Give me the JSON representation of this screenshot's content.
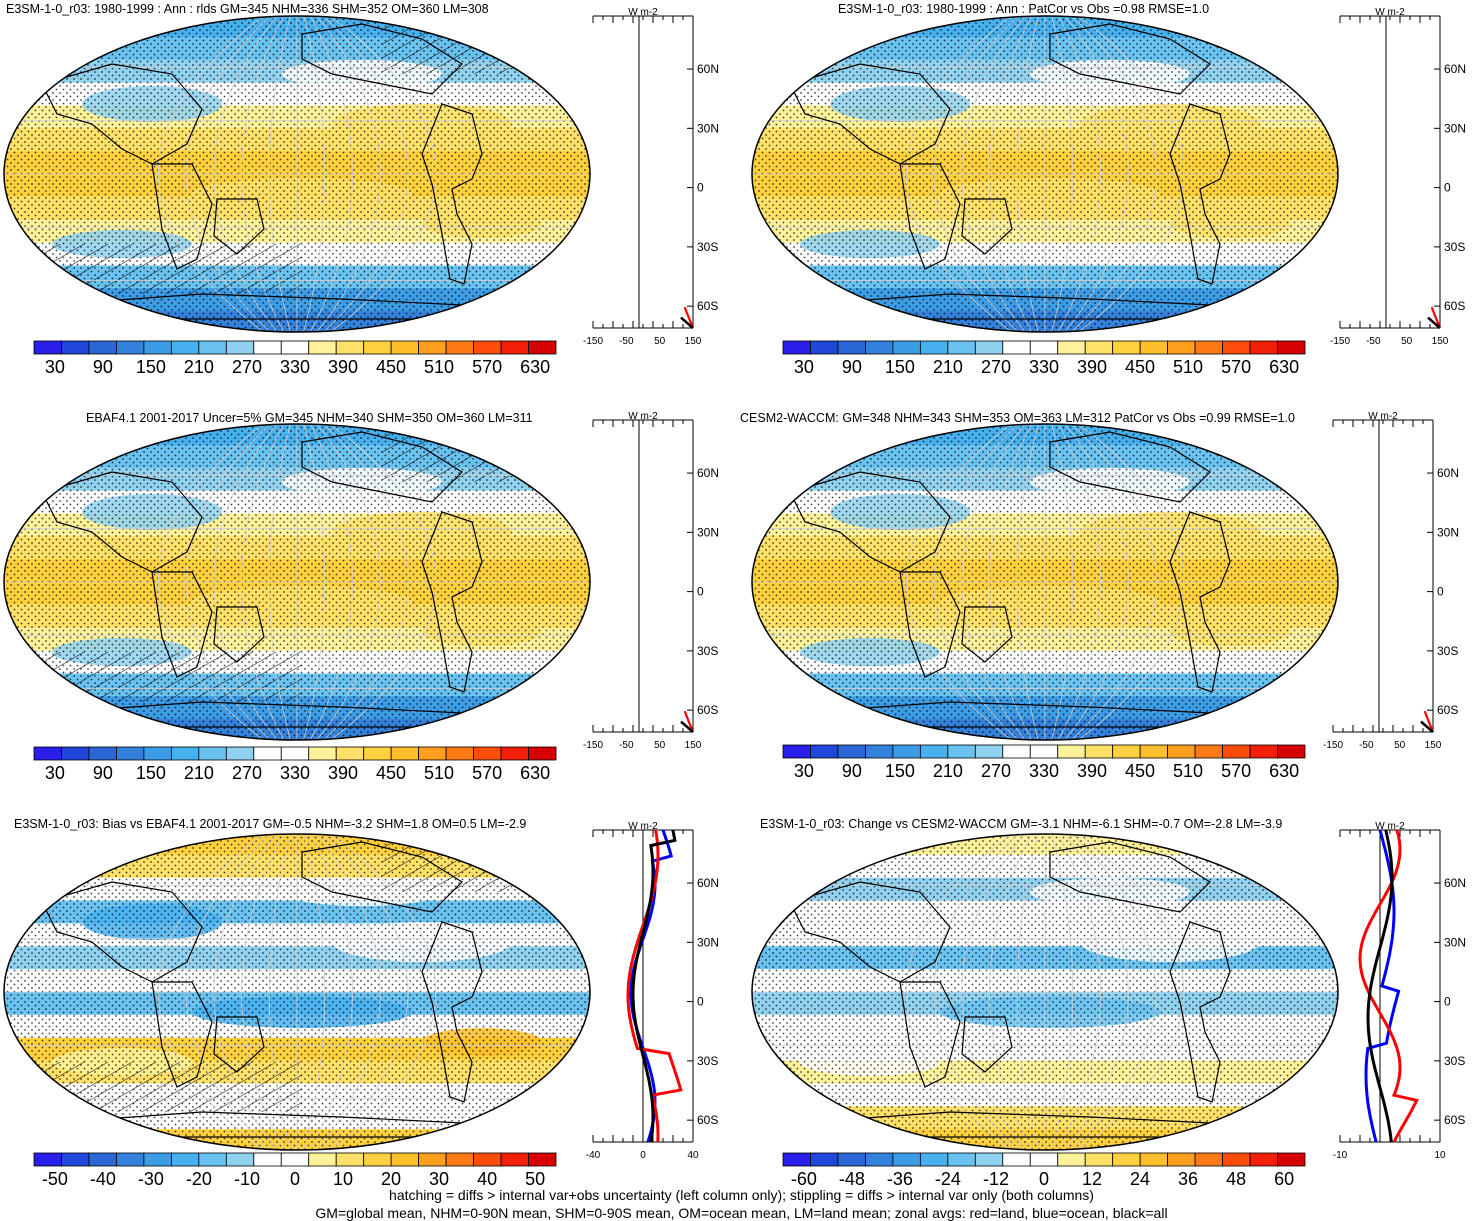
{
  "panels": [
    {
      "title": "E3SM-1-0_r03: 1980-1999 : Ann : rlds GM=345 NHM=336 SHM=352 OM=360 LM=308",
      "colorbar_labels": [
        "30",
        "90",
        "150",
        "210",
        "270",
        "330",
        "390",
        "450",
        "510",
        "570",
        "630"
      ],
      "zonal_ticks": [
        "-150",
        "-50",
        "50",
        "150"
      ],
      "zonal_unit": "W m-2",
      "lat_labels": [
        "60N",
        "30N",
        "0",
        "30S",
        "60S"
      ],
      "kind": "abs",
      "hatch": true
    },
    {
      "title": "E3SM-1-0_r03: 1980-1999 : Ann : PatCor vs Obs =0.98 RMSE=1.0",
      "colorbar_labels": [
        "30",
        "90",
        "150",
        "210",
        "270",
        "330",
        "390",
        "450",
        "510",
        "570",
        "630"
      ],
      "zonal_ticks": [
        "-150",
        "-50",
        "50",
        "150"
      ],
      "zonal_unit": "W m-2",
      "lat_labels": [
        "60N",
        "30N",
        "0",
        "30S",
        "60S"
      ],
      "kind": "abs",
      "hatch": false
    },
    {
      "title": "EBAF4.1 2001-2017 Uncer=5% GM=345 NHM=340 SHM=350 OM=360 LM=311",
      "colorbar_labels": [
        "30",
        "90",
        "150",
        "210",
        "270",
        "330",
        "390",
        "450",
        "510",
        "570",
        "630"
      ],
      "zonal_ticks": [
        "-150",
        "-50",
        "50",
        "150"
      ],
      "zonal_unit": "W m-2",
      "lat_labels": [
        "60N",
        "30N",
        "0",
        "30S",
        "60S"
      ],
      "kind": "abs",
      "hatch": true
    },
    {
      "title": "CESM2-WACCM: GM=348 NHM=343 SHM=353 OM=363 LM=312 PatCor vs Obs =0.99 RMSE=1.0",
      "colorbar_labels": [
        "30",
        "90",
        "150",
        "210",
        "270",
        "330",
        "390",
        "450",
        "510",
        "570",
        "630"
      ],
      "zonal_ticks": [
        "-150",
        "-50",
        "50",
        "150"
      ],
      "zonal_unit": "W m-2",
      "lat_labels": [
        "60N",
        "30N",
        "0",
        "30S",
        "60S"
      ],
      "kind": "abs",
      "hatch": false
    },
    {
      "title": "E3SM-1-0_r03: Bias vs EBAF4.1 2001-2017 GM=-0.5 NHM=-3.2 SHM=1.8 OM=0.5 LM=-2.9",
      "colorbar_labels": [
        "-50",
        "-40",
        "-30",
        "-20",
        "-10",
        "0",
        "10",
        "20",
        "30",
        "40",
        "50"
      ],
      "zonal_ticks": [
        "-40",
        "0",
        "40"
      ],
      "zonal_unit": "W m-2",
      "lat_labels": [
        "60N",
        "30N",
        "0",
        "30S",
        "60S"
      ],
      "kind": "bias",
      "hatch": true
    },
    {
      "title": "E3SM-1-0_r03: Change vs CESM2-WACCM GM=-3.1 NHM=-6.1 SHM=-0.7 OM=-2.8 LM=-3.9",
      "colorbar_labels": [
        "-60",
        "-48",
        "-36",
        "-24",
        "-12",
        "0",
        "12",
        "24",
        "36",
        "48",
        "60"
      ],
      "zonal_ticks": [
        "-10",
        "10"
      ],
      "zonal_unit": "W m-2",
      "lat_labels": [
        "60N",
        "30N",
        "0",
        "30S",
        "60S"
      ],
      "kind": "change",
      "hatch": false
    }
  ],
  "footer": {
    "line1": "hatching = diffs > internal var+obs uncertainty (left column only); stippling = diffs > internal var only (both columns)",
    "line2": "GM=global mean, NHM=0-90N mean, SHM=0-90S mean, OM=ocean mean, LM=land mean; zonal avgs: red=land, blue=ocean, black=all"
  },
  "colors": {
    "palette": [
      "#2a1fe8",
      "#1f47d9",
      "#2b66d6",
      "#3481dc",
      "#3d9ce6",
      "#47b0ef",
      "#69c2f0",
      "#8fd1ee",
      "#ffffff",
      "#ffffff",
      "#fff29a",
      "#ffe068",
      "#ffd13f",
      "#ffbf2a",
      "#ff9f1e",
      "#ff7a14",
      "#ff4d0c",
      "#f41f08",
      "#d60000"
    ],
    "land_line": "#ff0000",
    "ocean_line": "#0000ff",
    "all_line": "#000000"
  }
}
